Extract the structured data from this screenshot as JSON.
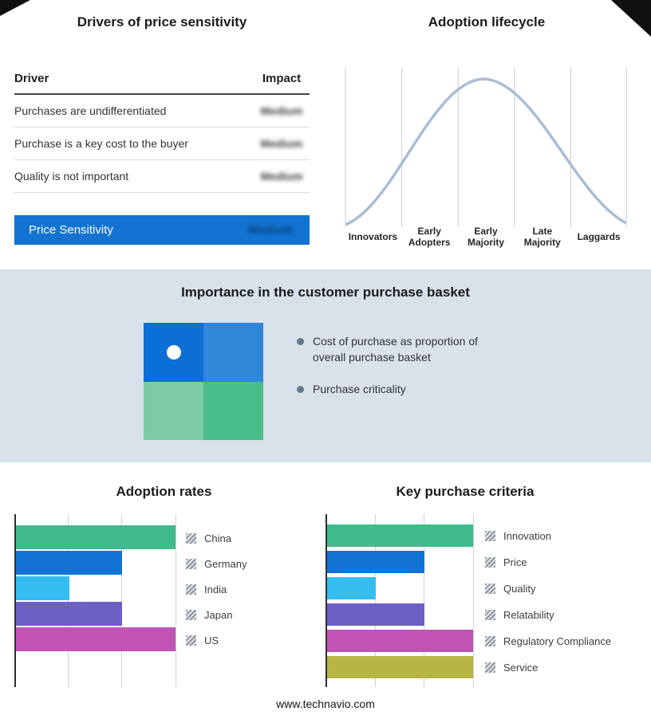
{
  "drivers_panel": {
    "title": "Drivers of price sensitivity",
    "columns": {
      "driver": "Driver",
      "impact": "Impact"
    },
    "rows": [
      {
        "driver": "Purchases are undifferentiated",
        "impact": "Medium"
      },
      {
        "driver": "Purchase is a key cost to the buyer",
        "impact": "Medium"
      },
      {
        "driver": "Quality is not important",
        "impact": "Medium"
      }
    ],
    "highlight": {
      "label": "Price Sensitivity",
      "impact": "Medium",
      "background": "#1273d2"
    }
  },
  "basket_panel": {
    "title": "Importance in the customer purchase basket",
    "bullets": [
      "Cost of purchase as proportion of overall purchase basket",
      "Purchase criticality"
    ],
    "grid_colors": [
      "#0c6fd6",
      "#2f87da",
      "#7ecaa4",
      "#49bd8a"
    ],
    "background": "#d9e1eb"
  },
  "chart_data": [
    {
      "type": "line",
      "title": "Adoption lifecycle",
      "categories": [
        "Innovators",
        "Early Adopters",
        "Early Majority",
        "Late Majority",
        "Laggards"
      ],
      "curve_shape": "bell",
      "values_relative": [
        10,
        55,
        100,
        55,
        10
      ],
      "curve_color": "#aabdd4",
      "gridline_color": "#c9cfd8",
      "legend_position": "none"
    },
    {
      "type": "bar",
      "title": "Adoption rates",
      "orientation": "horizontal",
      "categories": [
        "China",
        "Germany",
        "India",
        "Japan",
        "US"
      ],
      "values": [
        3,
        2,
        1,
        2,
        3
      ],
      "xlim": [
        0,
        3.2
      ],
      "gridlines": [
        1,
        2,
        3
      ],
      "colors": [
        "#3fbb8e",
        "#1273d2",
        "#35bdf0",
        "#6c60c4",
        "#c253b4"
      ],
      "axis_labels_visible": false
    },
    {
      "type": "bar",
      "title": "Key purchase criteria",
      "orientation": "horizontal",
      "categories": [
        "Innovation",
        "Price",
        "Quality",
        "Relatability",
        "Regulatory Compliance",
        "Service"
      ],
      "values": [
        3,
        2,
        1,
        2,
        3,
        3
      ],
      "xlim": [
        0,
        3.2
      ],
      "gridlines": [
        1,
        2,
        3
      ],
      "colors": [
        "#3fbb8e",
        "#1273d2",
        "#35bdf0",
        "#6c60c4",
        "#c253b4",
        "#b7b544"
      ],
      "axis_labels_visible": false
    }
  ],
  "footer": {
    "text": "www.technavio.com"
  }
}
